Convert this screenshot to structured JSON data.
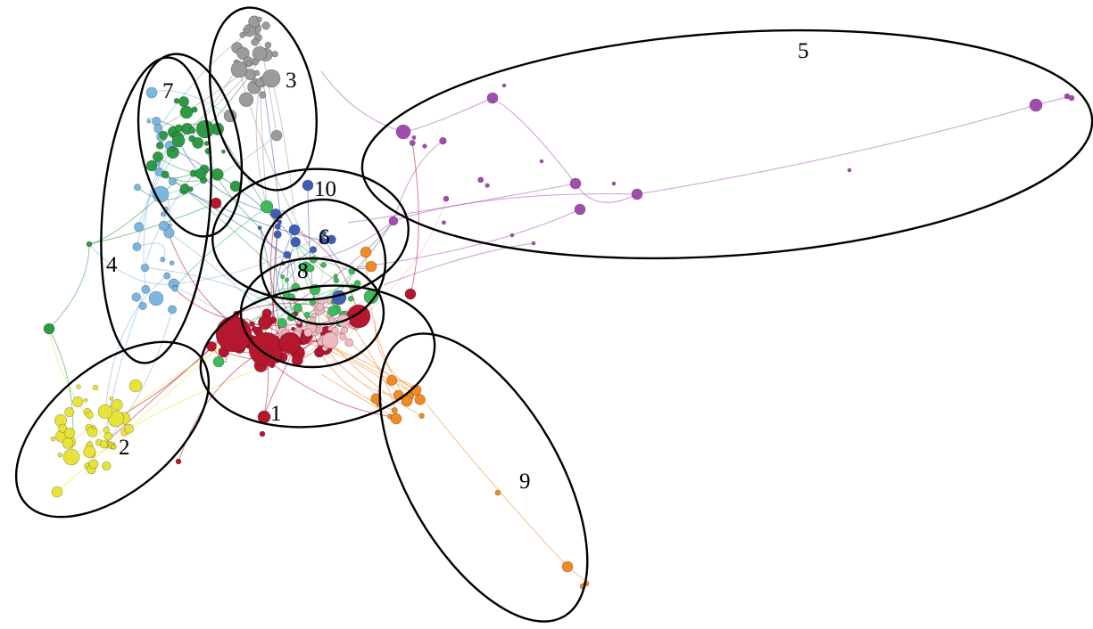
{
  "graph": {
    "colors": {
      "1": "#b5172f",
      "2": "#e8e33a",
      "3": "#9b9b9b",
      "4": "#7bb6e0",
      "5": "#a24bb0",
      "6": "#3f5fb5",
      "7": "#2e9a45",
      "8": "#f2b8c3",
      "9": "#f08a23",
      "10": "#3f5fb5",
      "g": "#3dba5a"
    },
    "clusters": [
      {
        "id": "1",
        "label": "1"
      },
      {
        "id": "2",
        "label": "2"
      },
      {
        "id": "3",
        "label": "3"
      },
      {
        "id": "4",
        "label": "4"
      },
      {
        "id": "5",
        "label": "5"
      },
      {
        "id": "6",
        "label": "6"
      },
      {
        "id": "7",
        "label": "7"
      },
      {
        "id": "8",
        "label": "8"
      },
      {
        "id": "9",
        "label": "9"
      },
      {
        "id": "10",
        "label": "10"
      }
    ]
  }
}
